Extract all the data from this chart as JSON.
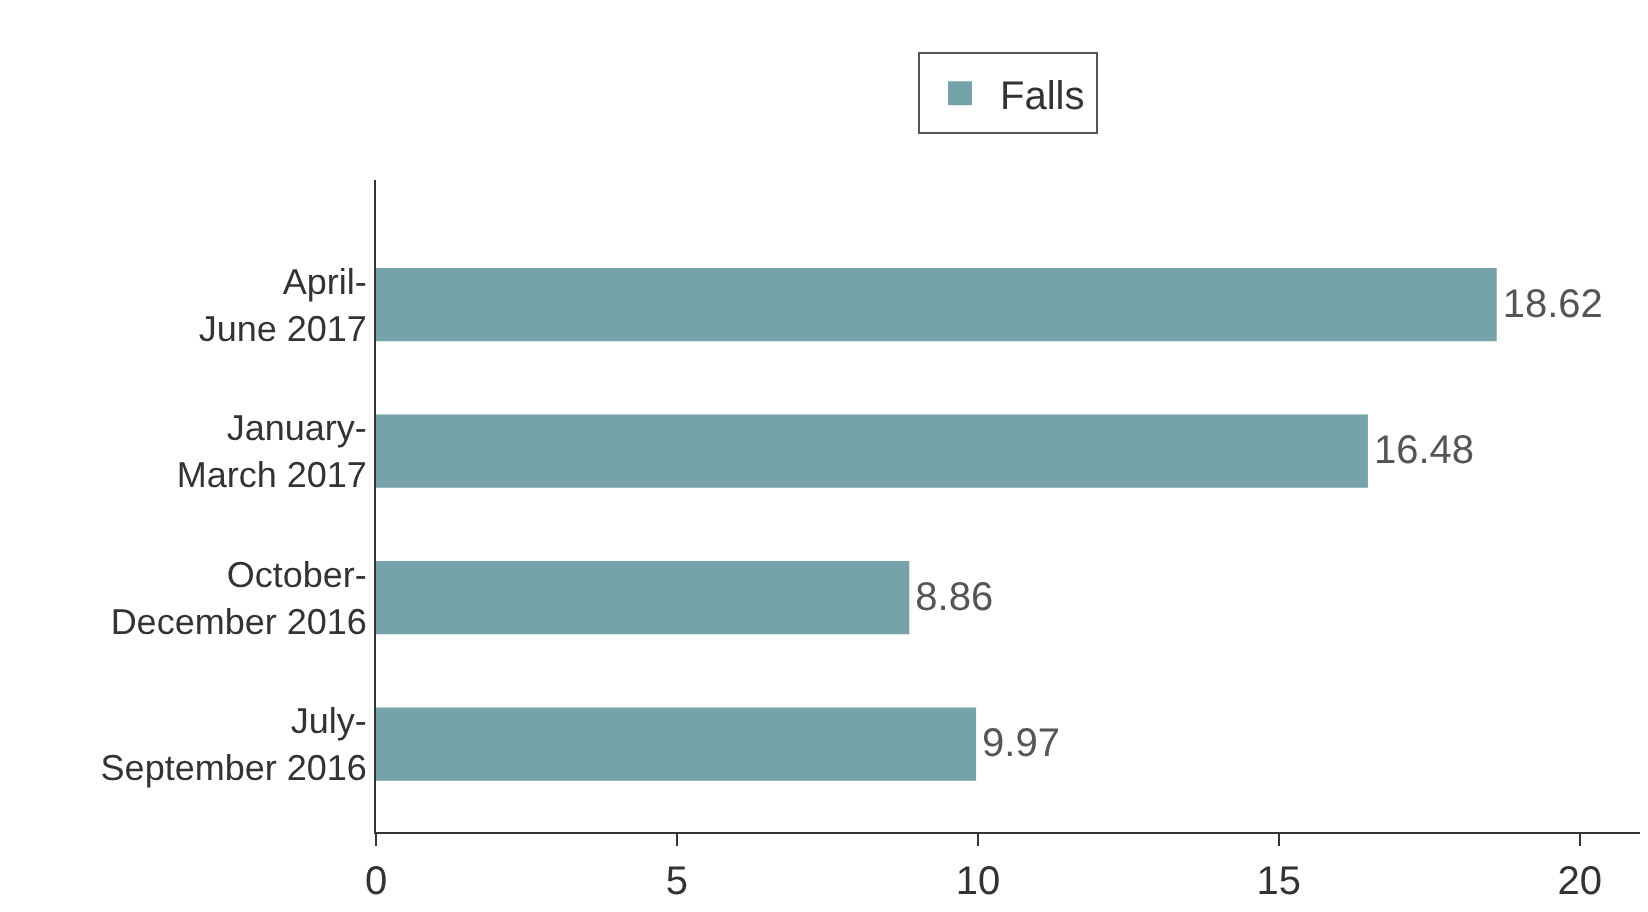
{
  "chart_data": {
    "type": "bar",
    "orientation": "horizontal",
    "categories": [
      "April-June 2017",
      "January-March 2017",
      "October-December 2016",
      "July-September 2016"
    ],
    "series": [
      {
        "name": "Falls",
        "color": "#76a3aa",
        "values": [
          18.62,
          16.48,
          8.86,
          9.97
        ]
      }
    ],
    "xlim": [
      0,
      21
    ],
    "xticks": [
      0,
      5,
      10,
      15,
      20
    ],
    "data_labels": true,
    "legend": "top"
  }
}
